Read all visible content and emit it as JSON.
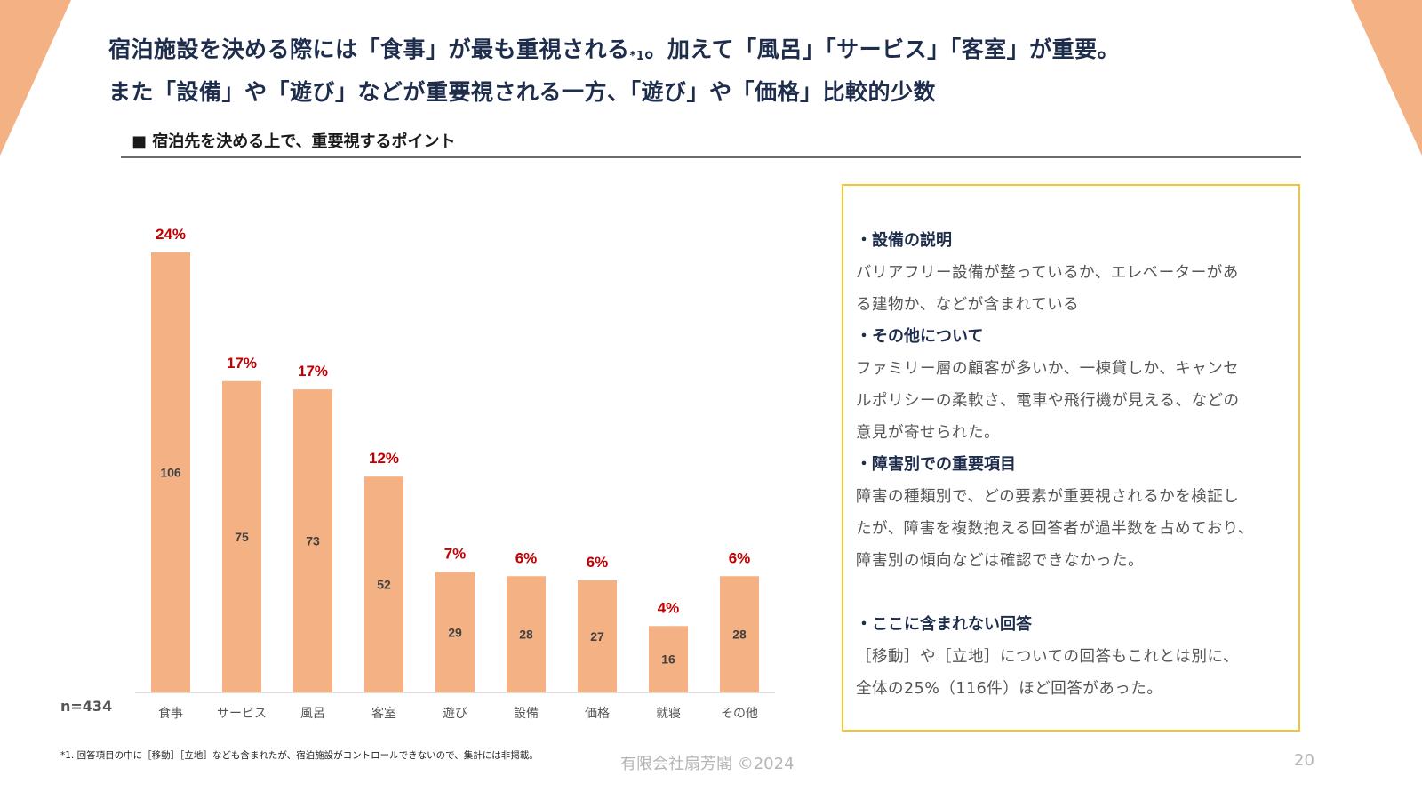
{
  "headline": {
    "line1_a": "宿泊施設を決める際には「食事」が最も重視される",
    "line1_note": "*1",
    "line1_b": "。加えて「風呂」「サービス」「客室」が重要。",
    "line2": "また「設備」や「遊び」などが重要視される一方、「遊び」や「価格」比較的少数"
  },
  "subtitle": "■ 宿泊先を決める上で、重要視するポイント",
  "colors": {
    "bar": "#f4b183",
    "percent": "#c00000",
    "accent_corner": "#f4b183",
    "box_border": "#f2c530"
  },
  "chart_data": {
    "type": "bar",
    "title": "宿泊先を決める上で、重要視するポイント",
    "categories": [
      "食事",
      "サービス",
      "風呂",
      "客室",
      "遊び",
      "設備",
      "価格",
      "就寝",
      "その他"
    ],
    "values": [
      106,
      75,
      73,
      52,
      29,
      28,
      27,
      16,
      28
    ],
    "percent_labels": [
      "24%",
      "17%",
      "17%",
      "12%",
      "7%",
      "6%",
      "6%",
      "4%",
      "6%"
    ],
    "xlabel": "",
    "ylabel": "",
    "ylim": [
      0,
      115
    ],
    "grid": false,
    "legend": "none"
  },
  "sample_size": "n=434",
  "notes": [
    {
      "heading": "・設備の説明",
      "lines": [
        "バリアフリー設備が整っているか、エレベーターがあ",
        "る建物か、などが含まれている"
      ]
    },
    {
      "heading": "・その他について",
      "lines": [
        "ファミリー層の顧客が多いか、一棟貸しか、キャンセ",
        "ルポリシーの柔軟さ、電車や飛行機が見える、などの",
        "意見が寄せられた。"
      ]
    },
    {
      "heading": "・障害別での重要項目",
      "lines": [
        "障害の種類別で、どの要素が重要視されるかを検証し",
        "たが、障害を複数抱える回答者が過半数を占めており、",
        "障害別の傾向などは確認できなかった。"
      ]
    },
    {
      "heading": "・ここに含まれない回答",
      "lines": [
        "［移動］や［立地］についての回答もこれとは別に、",
        "全体の25%（116件）ほど回答があった。"
      ]
    }
  ],
  "footnote": "*1. 回答項目の中に［移動］［立地］なども含まれたが、宿泊施設がコントロールできないので、集計には非掲載。",
  "copyright": "有限会社扇芳閣 ©2024",
  "page_number": "20"
}
